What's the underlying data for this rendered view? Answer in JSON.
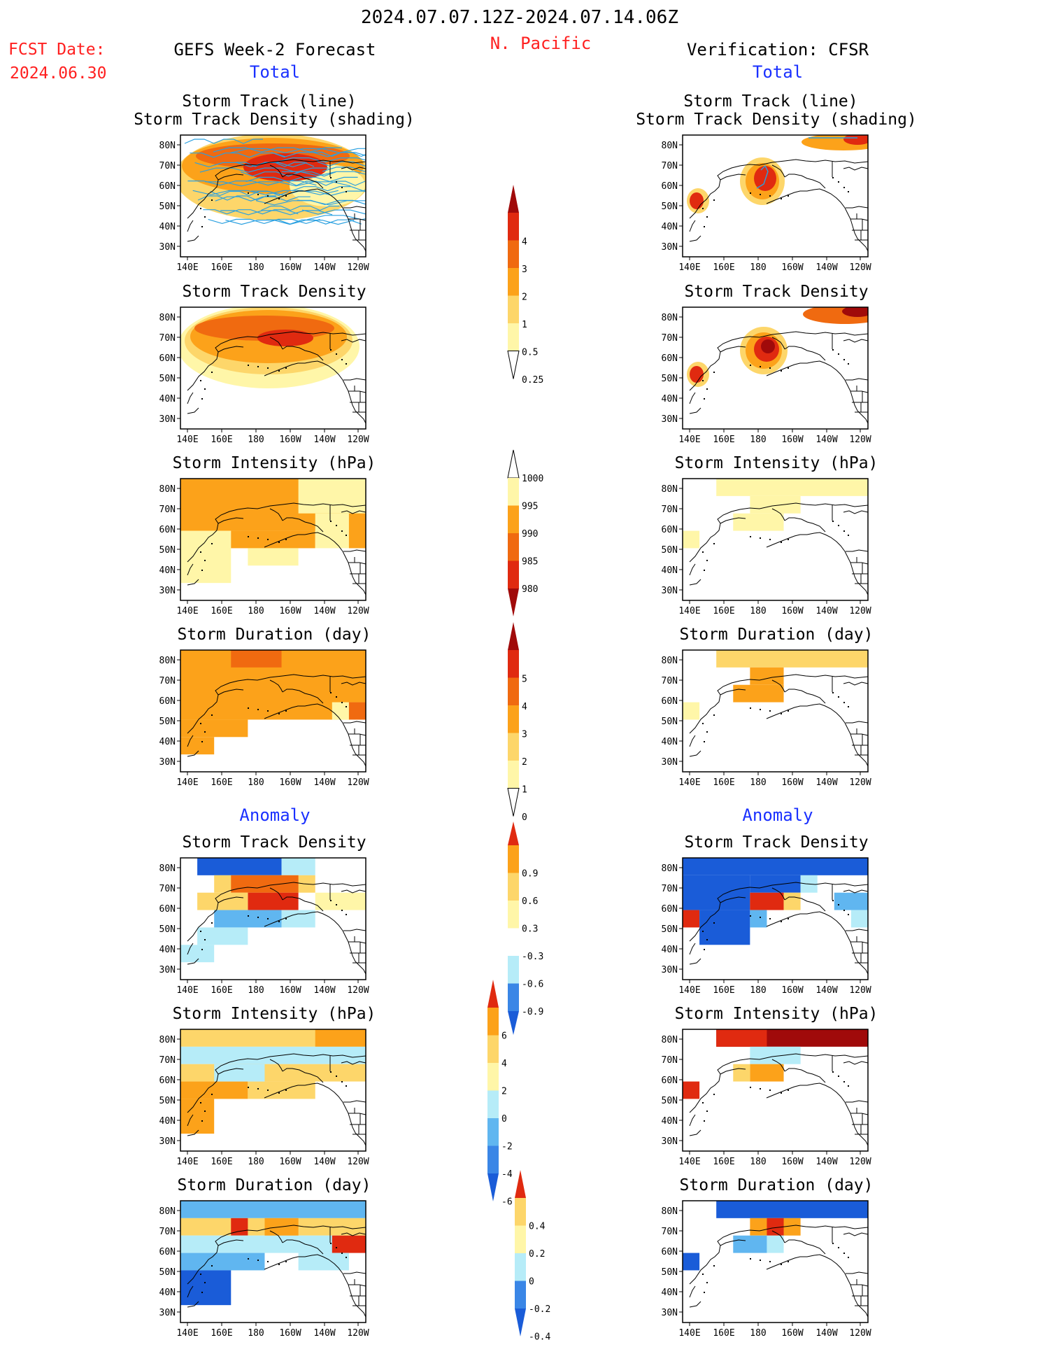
{
  "header": {
    "date_range": "2024.07.07.12Z-2024.07.14.06Z",
    "region": "N. Pacific",
    "fcst_label": "FCST Date:",
    "fcst_date": "2024.06.30",
    "left_title": "GEFS Week-2 Forecast",
    "right_title": "Verification: CFSR",
    "total_label": "Total",
    "anomaly_label": "Anomaly"
  },
  "colors": {
    "red": "#ff2020",
    "blue": "#1a30ff",
    "yellow_light": "#fff6a8",
    "yellow": "#fdd66a",
    "orange": "#fca21a",
    "orange_dark": "#f06a10",
    "red_mid": "#e02a10",
    "red_dark": "#a00a0a",
    "blue_light": "#b6ecf8",
    "blue_mid": "#60b6f0",
    "blue_mid2": "#3a86e6",
    "blue_dark": "#1a5cd8",
    "track_line": "#2aa0e0"
  },
  "map": {
    "lat_ticks": [
      "80N",
      "70N",
      "60N",
      "50N",
      "40N",
      "30N"
    ],
    "lon_ticks": [
      "140E",
      "160E",
      "180",
      "160W",
      "140W",
      "120W"
    ]
  },
  "panels": {
    "total": [
      {
        "title1": "Storm Track (line)",
        "title2": "Storm Track Density (shading)"
      },
      {
        "title1": "Storm Track Density"
      },
      {
        "title1": "Storm Intensity (hPa)"
      },
      {
        "title1": "Storm Duration (day)"
      }
    ],
    "anomaly": [
      {
        "title1": "Storm Track Density"
      },
      {
        "title1": "Storm Intensity (hPa)"
      },
      {
        "title1": "Storm Duration (day)"
      }
    ]
  },
  "colorbars": [
    {
      "labels": [
        "4",
        "3",
        "2",
        "1",
        "0.5",
        "0.25"
      ]
    },
    {
      "labels": [
        "1000",
        "995",
        "990",
        "985",
        "980"
      ]
    },
    {
      "labels": [
        "5",
        "4",
        "3",
        "2",
        "1",
        "0"
      ]
    },
    {
      "labels": [
        "0.9",
        "0.6",
        "0.3",
        "-0.3",
        "-0.6",
        "-0.9"
      ]
    },
    {
      "labels": [
        "6",
        "4",
        "2",
        "0",
        "-2",
        "-4",
        "-6"
      ]
    },
    {
      "labels": [
        "0.4",
        "0.2",
        "0",
        "-0.2",
        "-0.4"
      ]
    }
  ]
}
